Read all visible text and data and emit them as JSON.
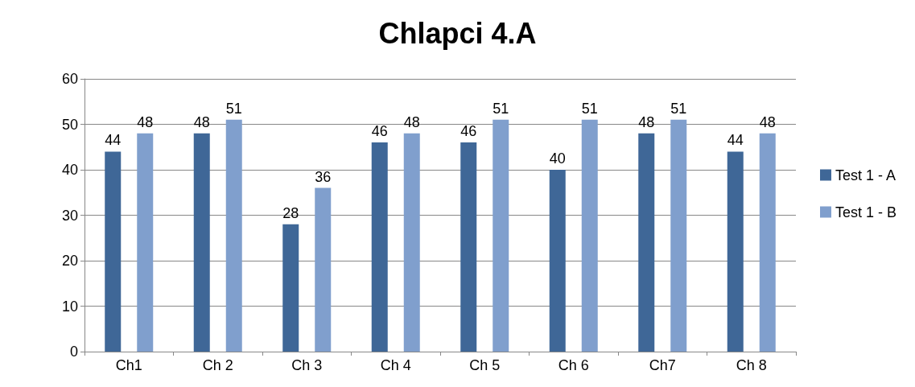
{
  "chart_data": {
    "type": "bar",
    "title": "Chlapci 4.A",
    "categories": [
      "Ch1",
      "Ch 2",
      "Ch 3",
      "Ch 4",
      "Ch 5",
      "Ch 6",
      "Ch7",
      "Ch 8"
    ],
    "series": [
      {
        "name": "Test 1 - A",
        "color": "#3f6797",
        "values": [
          44,
          48,
          28,
          46,
          46,
          40,
          48,
          44
        ]
      },
      {
        "name": "Test 1 - B",
        "color": "#809fcd",
        "values": [
          48,
          51,
          36,
          48,
          51,
          51,
          51,
          48
        ]
      }
    ],
    "ylim": [
      0,
      60
    ],
    "yticks": [
      0,
      10,
      20,
      30,
      40,
      50,
      60
    ],
    "grid": "y",
    "legend": "right",
    "data_labels": true
  }
}
